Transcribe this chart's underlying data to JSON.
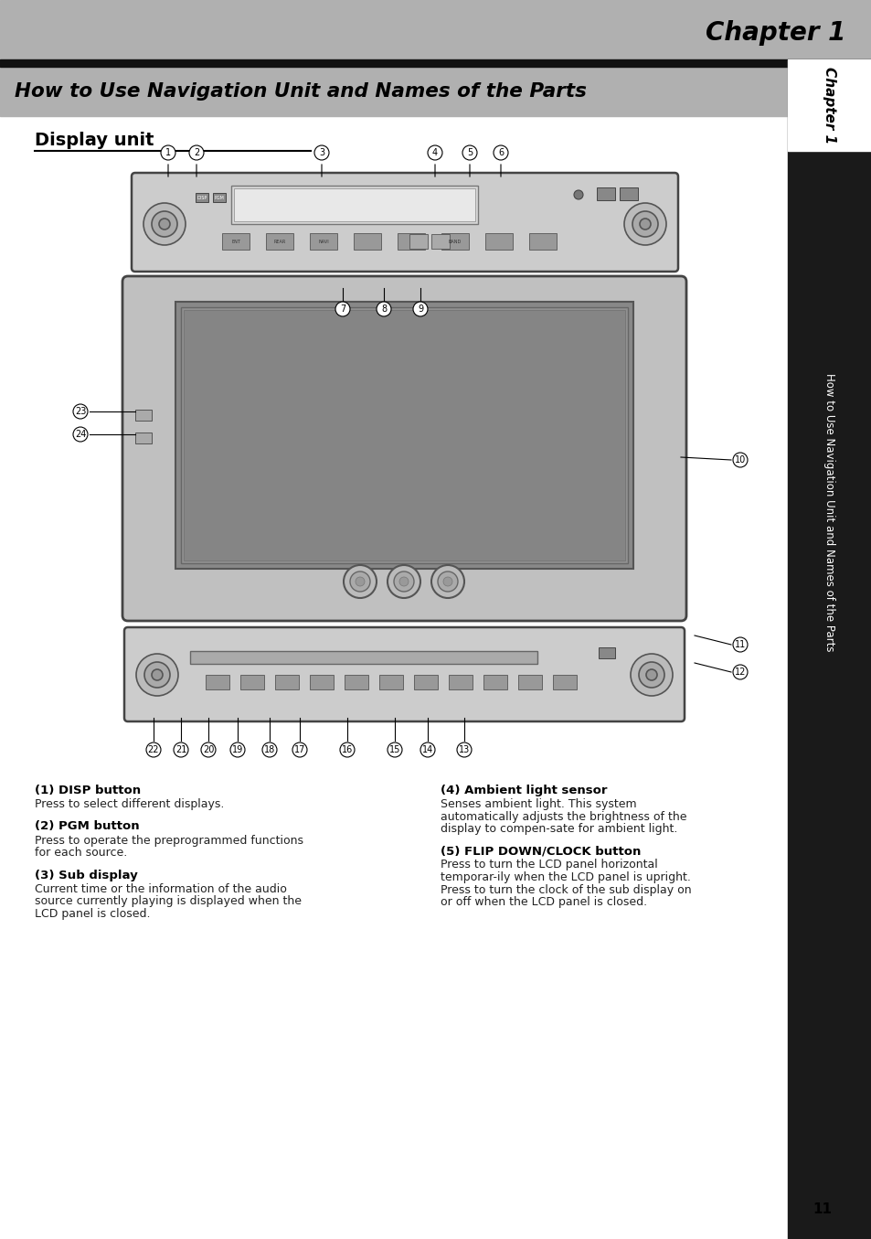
{
  "page_bg": "#ffffff",
  "header_bg": "#b0b0b0",
  "header_title": "Chapter 1",
  "header_title_color": "#000000",
  "chapter_bar_bg": "#1a1a1a",
  "chapter_bar_text": "Chapter 1",
  "chapter_bar_text_color": "#ffffff",
  "side_bar_bg": "#1a1a1a",
  "side_text": "How to Use Navigation Unit and Names of the Parts",
  "side_text_color": "#ffffff",
  "section_bar_bg": "#b0b0b0",
  "section_title": "How to Use Navigation Unit and Names of the Parts",
  "section_title_color": "#000000",
  "subsection_title": "Display unit",
  "subsection_title_color": "#000000",
  "subsection_underline_color": "#000000",
  "page_number": "11",
  "page_number_color": "#000000",
  "descriptions": [
    {
      "heading": "(1) DISP button",
      "body": "Press to select different displays."
    },
    {
      "heading": "(2) PGM button",
      "body": "Press to operate the preprogrammed functions for each source."
    },
    {
      "heading": "(3) Sub display",
      "body": "Current time or the information of the audio source currently playing is displayed when the LCD panel is closed."
    },
    {
      "heading": "(4) Ambient light sensor",
      "body": "Senses ambient light. This system automatically adjusts the brightness of the display to compen-sate for ambient light."
    },
    {
      "heading": "(5) FLIP DOWN/CLOCK button",
      "body": "Press to turn the LCD panel horizontal temporar-ily when the LCD panel is upright.\nPress to turn the clock of the sub display on or off when the LCD panel is closed."
    }
  ],
  "callout_numbers_top": [
    "1",
    "2",
    "3",
    "4",
    "5",
    "6"
  ],
  "callout_numbers_mid": [
    "7",
    "8",
    "9"
  ],
  "callout_numbers_right": [
    "10",
    "11",
    "12"
  ],
  "callout_numbers_bot": [
    "22",
    "21",
    "20",
    "19",
    "18",
    "17",
    "16",
    "15",
    "14",
    "13"
  ],
  "callout_left": [
    "23",
    "24"
  ]
}
